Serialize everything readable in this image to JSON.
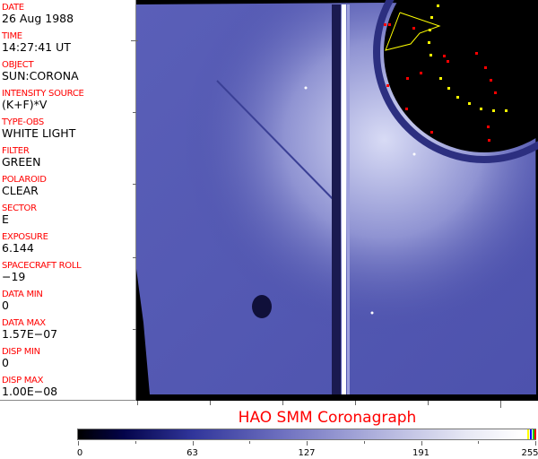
{
  "fields": [
    {
      "label": "DATE",
      "value": "26 Aug 1988"
    },
    {
      "label": "TIME",
      "value": "14:27:41 UT"
    },
    {
      "label": "OBJECT",
      "value": "SUN:CORONA"
    },
    {
      "label": "INTENSITY SOURCE",
      "value": "(K+F)*V"
    },
    {
      "label": "TYPE-OBS",
      "value": "WHITE LIGHT"
    },
    {
      "label": "FILTER",
      "value": "GREEN"
    },
    {
      "label": "POLAROID",
      "value": "CLEAR"
    },
    {
      "label": "SECTOR",
      "value": "E"
    },
    {
      "label": "EXPOSURE",
      "value": "6.144"
    },
    {
      "label": "SPACECRAFT ROLL",
      "value": "−19"
    },
    {
      "label": "DATA MIN",
      "value": "0"
    },
    {
      "label": "DATA MAX",
      "value": "1.57E−07"
    },
    {
      "label": "DISP MIN",
      "value": "0"
    },
    {
      "label": "DISP MAX",
      "value": "1.00E−08"
    }
  ],
  "title": "HAO  SMM Coronagraph",
  "colorbar": {
    "ticks": [
      "0",
      "63",
      "127",
      "191",
      "255"
    ],
    "colors": {
      "label": "#ff0000",
      "image": "#6f71c0",
      "overlay_yellow": "#ffff00",
      "overlay_red": "#ff0000"
    }
  }
}
